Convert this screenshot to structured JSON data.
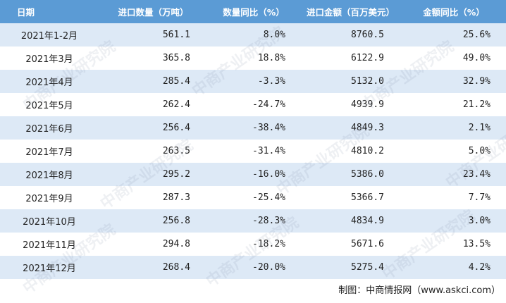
{
  "table": {
    "header": [
      "日期",
      "进口数量（万吨）",
      "数量同比（%）",
      "进口金额（百万美元）",
      "金额同比（%）"
    ],
    "rows": [
      [
        "2021年1-2月",
        "561.1",
        "8.0%",
        "8760.5",
        "25.6%"
      ],
      [
        "2021年3月",
        "365.8",
        "18.8%",
        "6122.9",
        "49.0%"
      ],
      [
        "2021年4月",
        "285.4",
        "-3.3%",
        "5132.0",
        "32.9%"
      ],
      [
        "2021年5月",
        "262.4",
        "-24.7%",
        "4939.9",
        "21.2%"
      ],
      [
        "2021年6月",
        "256.4",
        "-38.4%",
        "4849.3",
        "2.1%"
      ],
      [
        "2021年7月",
        "263.5",
        "-31.4%",
        "4810.2",
        "5.0%"
      ],
      [
        "2021年8月",
        "295.2",
        "-16.0%",
        "5386.0",
        "23.4%"
      ],
      [
        "2021年9月",
        "287.3",
        "-25.4%",
        "5366.7",
        "7.7%"
      ],
      [
        "2021年10月",
        "256.8",
        "-28.3%",
        "4834.9",
        "3.0%"
      ],
      [
        "2021年11月",
        "294.8",
        "-18.2%",
        "5671.6",
        "13.5%"
      ],
      [
        "2021年12月",
        "268.4",
        "-20.0%",
        "5275.4",
        "4.2%"
      ]
    ]
  },
  "watermark": "中商产业研究院",
  "footer": "制图：中商情报网（www.askci.com）"
}
